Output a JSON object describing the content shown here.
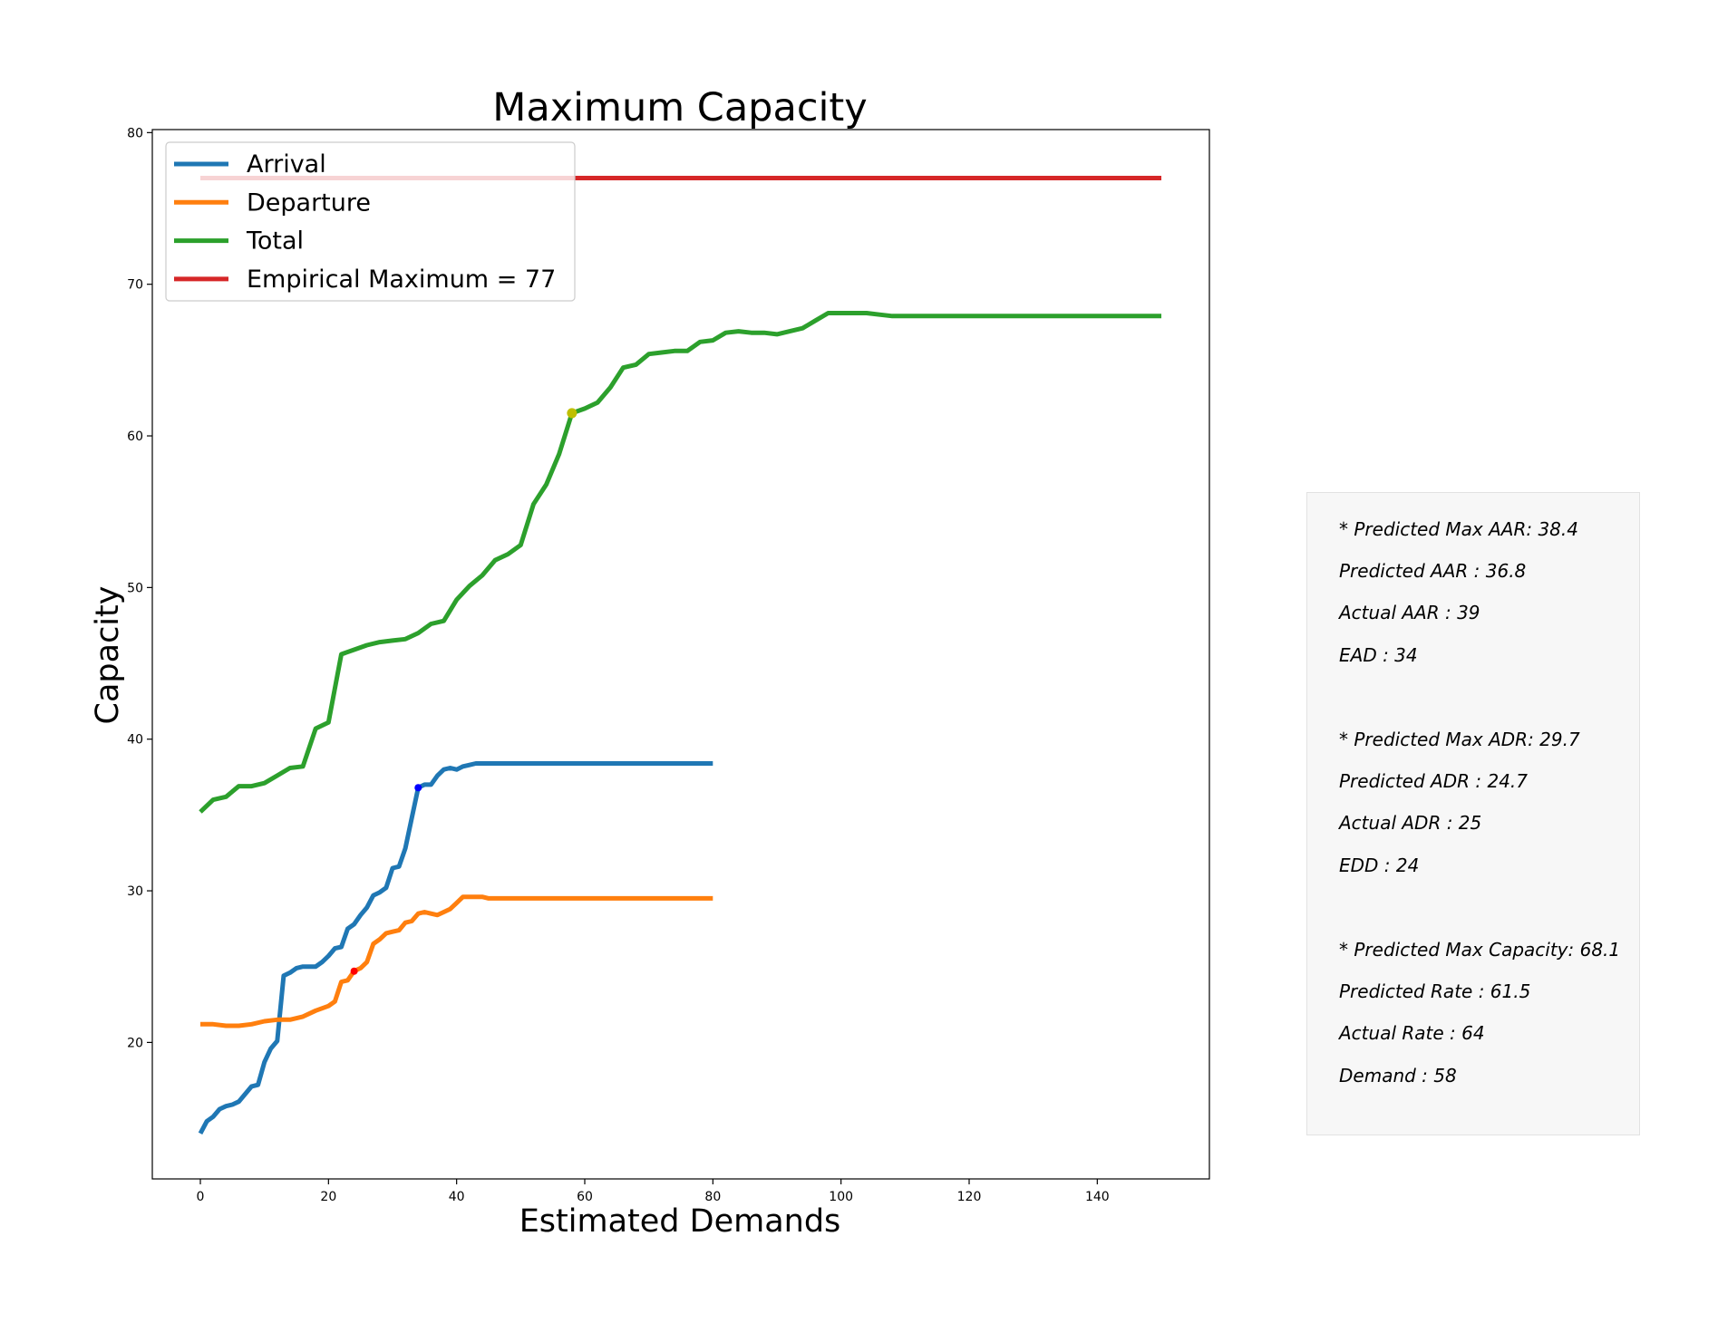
{
  "chart_data": {
    "type": "line",
    "title": "Maximum Capacity",
    "xlabel": "Estimated Demands",
    "ylabel": "Capacity",
    "xlim": [
      -7.5,
      157.5
    ],
    "ylim": [
      11,
      80.2
    ],
    "xticks": [
      0,
      20,
      40,
      60,
      80,
      100,
      120,
      140
    ],
    "yticks": [
      20,
      30,
      40,
      50,
      60,
      70,
      80
    ],
    "grid": false,
    "legend": "top-left",
    "series": [
      {
        "name": "Arrival",
        "color": "#1f77b4",
        "x": [
          0,
          1,
          2,
          3,
          4,
          5,
          6,
          7,
          8,
          9,
          10,
          11,
          12,
          13,
          14,
          15,
          16,
          17,
          18,
          19,
          20,
          21,
          22,
          23,
          24,
          25,
          26,
          27,
          28,
          29,
          30,
          31,
          32,
          33,
          34,
          35,
          36,
          37,
          38,
          39,
          40,
          41,
          42,
          43,
          44,
          45,
          50,
          55,
          60,
          65,
          70,
          75,
          80
        ],
        "y": [
          14.0,
          14.8,
          15.1,
          15.6,
          15.8,
          15.9,
          16.1,
          16.6,
          17.1,
          17.2,
          18.7,
          19.6,
          20.1,
          24.4,
          24.6,
          24.9,
          25.0,
          25.0,
          25.0,
          25.3,
          25.7,
          26.2,
          26.3,
          27.5,
          27.8,
          28.4,
          28.9,
          29.7,
          29.9,
          30.2,
          31.5,
          31.6,
          32.8,
          34.8,
          36.8,
          37.0,
          37.0,
          37.6,
          38.0,
          38.1,
          38.0,
          38.2,
          38.3,
          38.4,
          38.4,
          38.4,
          38.4,
          38.4,
          38.4,
          38.4,
          38.4,
          38.4,
          38.4
        ]
      },
      {
        "name": "Departure",
        "color": "#ff7f0e",
        "x": [
          0,
          2,
          4,
          6,
          8,
          10,
          12,
          14,
          16,
          18,
          20,
          21,
          22,
          23,
          24,
          25,
          26,
          27,
          28,
          29,
          30,
          31,
          32,
          33,
          34,
          35,
          36,
          37,
          38,
          39,
          40,
          41,
          42,
          43,
          44,
          45,
          50,
          55,
          60,
          65,
          70,
          75,
          80
        ],
        "y": [
          21.2,
          21.2,
          21.1,
          21.1,
          21.2,
          21.4,
          21.5,
          21.5,
          21.7,
          22.1,
          22.4,
          22.7,
          24.0,
          24.1,
          24.7,
          24.9,
          25.3,
          26.5,
          26.8,
          27.2,
          27.3,
          27.4,
          27.9,
          28.0,
          28.5,
          28.6,
          28.5,
          28.4,
          28.6,
          28.8,
          29.2,
          29.6,
          29.6,
          29.6,
          29.6,
          29.5,
          29.5,
          29.5,
          29.5,
          29.5,
          29.5,
          29.5,
          29.5
        ]
      },
      {
        "name": "Total",
        "color": "#2ca02c",
        "x": [
          0,
          2,
          4,
          6,
          8,
          10,
          12,
          14,
          16,
          18,
          20,
          22,
          24,
          26,
          28,
          30,
          32,
          34,
          36,
          38,
          40,
          42,
          44,
          46,
          48,
          50,
          52,
          54,
          56,
          58,
          60,
          62,
          64,
          66,
          68,
          70,
          72,
          74,
          76,
          78,
          80,
          82,
          84,
          86,
          88,
          90,
          92,
          94,
          96,
          98,
          100,
          102,
          104,
          106,
          108,
          110,
          120,
          130,
          140,
          150
        ],
        "y": [
          35.2,
          36.0,
          36.2,
          36.9,
          36.9,
          37.1,
          37.6,
          38.1,
          38.2,
          40.7,
          41.1,
          45.6,
          45.9,
          46.2,
          46.4,
          46.5,
          46.6,
          47.0,
          47.6,
          47.8,
          49.2,
          50.1,
          50.8,
          51.8,
          52.2,
          52.8,
          55.5,
          56.8,
          58.8,
          61.5,
          61.8,
          62.2,
          63.2,
          64.5,
          64.7,
          65.4,
          65.5,
          65.6,
          65.6,
          66.2,
          66.3,
          66.8,
          66.9,
          66.8,
          66.8,
          66.7,
          66.9,
          67.1,
          67.6,
          68.1,
          68.1,
          68.1,
          68.1,
          68.0,
          67.9,
          67.9,
          67.9,
          67.9,
          67.9,
          67.9
        ]
      },
      {
        "name": "Empirical Maximum = 77",
        "color": "#d62728",
        "x": [
          0,
          150
        ],
        "y": [
          77,
          77
        ]
      }
    ],
    "markers": [
      {
        "x": 34,
        "y": 36.8,
        "color": "#0000ff"
      },
      {
        "x": 24,
        "y": 24.7,
        "color": "#ff0000"
      },
      {
        "x": 58,
        "y": 61.5,
        "color": "#bfbf00"
      }
    ]
  },
  "info_box": {
    "lines": [
      "* Predicted Max AAR: 38.4",
      "Predicted AAR : 36.8",
      "Actual AAR : 39",
      "EAD : 34",
      "* Predicted Max ADR: 29.7",
      "Predicted ADR : 24.7",
      "Actual ADR : 25",
      "EDD : 24",
      "* Predicted Max Capacity: 68.1",
      "Predicted Rate : 61.5",
      "Actual Rate : 64",
      "Demand : 58"
    ]
  }
}
